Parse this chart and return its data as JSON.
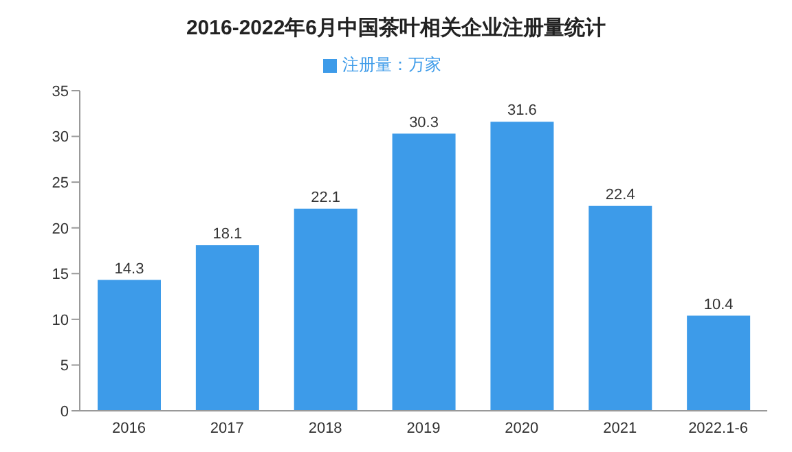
{
  "chart_data": {
    "type": "bar",
    "title": "2016-2022年6月中国茶叶相关企业注册量统计",
    "categories": [
      "2016",
      "2017",
      "2018",
      "2019",
      "2020",
      "2021",
      "2022.1-6"
    ],
    "series": [
      {
        "name": "注册量：万家",
        "color": "#3d9be9",
        "values": [
          14.3,
          18.1,
          22.1,
          30.3,
          31.6,
          22.4,
          10.4
        ]
      }
    ],
    "ylim": [
      0,
      35
    ],
    "yticks": [
      0,
      5,
      10,
      15,
      20,
      25,
      30,
      35
    ],
    "grid": false,
    "legend": "top",
    "data_labels": true
  }
}
